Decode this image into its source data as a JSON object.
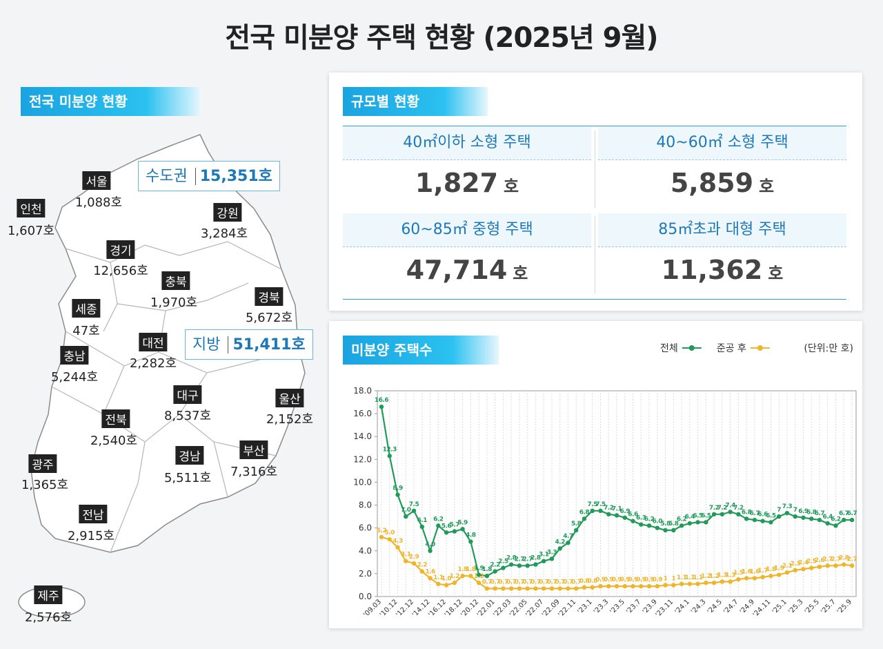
{
  "header": {
    "title": "전국 미분양 주택 현황  (2025년 9월)"
  },
  "map": {
    "section": "전국 미분양 현황",
    "callouts": [
      {
        "label": "수도권",
        "value": "15,351호"
      },
      {
        "label": "지방",
        "value": "51,411호"
      }
    ],
    "regions": [
      {
        "name": "서울",
        "count": "1,088호"
      },
      {
        "name": "인천",
        "count": "1,607호"
      },
      {
        "name": "강원",
        "count": "3,284호"
      },
      {
        "name": "경기",
        "count": "12,656호"
      },
      {
        "name": "충북",
        "count": "1,970호"
      },
      {
        "name": "경북",
        "count": "5,672호"
      },
      {
        "name": "세종",
        "count": "47호"
      },
      {
        "name": "충남",
        "count": "5,244호"
      },
      {
        "name": "대전",
        "count": "2,282호"
      },
      {
        "name": "대구",
        "count": "8,537호"
      },
      {
        "name": "울산",
        "count": "2,152호"
      },
      {
        "name": "전북",
        "count": "2,540호"
      },
      {
        "name": "경남",
        "count": "5,511호"
      },
      {
        "name": "부산",
        "count": "7,316호"
      },
      {
        "name": "광주",
        "count": "1,365호"
      },
      {
        "name": "전남",
        "count": "2,915호"
      },
      {
        "name": "제주",
        "count": "2,576호"
      }
    ]
  },
  "table": {
    "section": "규모별 현황",
    "cells": [
      {
        "label": "40㎡이하 소형 주택",
        "value": "1,827",
        "unit": "호"
      },
      {
        "label": "40~60㎡ 소형 주택",
        "value": "5,859",
        "unit": "호"
      },
      {
        "label": "60~85㎡ 중형 주택",
        "value": "47,714",
        "unit": "호"
      },
      {
        "label": "85㎡초과 대형 주택",
        "value": "11,362",
        "unit": "호"
      }
    ]
  },
  "chart_data": {
    "type": "line",
    "title": "미분양 주택수",
    "unit_note": "(단위:만 호)",
    "categories": [
      "'09.03",
      null,
      "'10.12",
      null,
      "'12.12",
      null,
      "'14.12",
      null,
      "'16.12",
      null,
      "'18.12",
      null,
      "'20.12",
      null,
      "'22.01",
      null,
      "'22.03",
      null,
      "'22.05",
      null,
      "'22.07",
      null,
      "'22.09",
      null,
      "'22.11",
      null,
      "'23.1",
      null,
      "'23.3",
      null,
      "'23.5",
      null,
      "'23.7",
      null,
      "'23.9",
      null,
      "'23.11",
      null,
      "'24.1",
      null,
      "'24.3",
      null,
      "'24.5",
      null,
      "'24.7",
      null,
      "'24.9",
      null,
      "'24.11",
      null,
      "'25.1",
      null,
      "'25.3",
      null,
      "'25.5",
      null,
      "'25.7",
      null,
      "'25.9"
    ],
    "series": [
      {
        "name": "전체",
        "color": "#1f9a58",
        "values": [
          16.6,
          12.3,
          8.9,
          7.0,
          7.5,
          6.1,
          4.0,
          6.2,
          5.6,
          5.7,
          5.9,
          4.8,
          1.9,
          1.8,
          2.2,
          2.5,
          2.8,
          2.7,
          2.7,
          2.8,
          3.1,
          3.3,
          4.2,
          4.7,
          5.8,
          6.8,
          7.5,
          7.5,
          7.2,
          7.1,
          6.9,
          6.6,
          6.3,
          6.2,
          6.0,
          5.8,
          5.8,
          6.2,
          6.4,
          6.5,
          6.5,
          7.2,
          7.2,
          7.4,
          7.2,
          6.8,
          6.7,
          6.6,
          6.5,
          7,
          7.3,
          7,
          6.9,
          6.8,
          6.7,
          6.4,
          6.2,
          6.7,
          6.7
        ],
        "value_labels": [
          "16.6",
          "12.3",
          "8.9",
          "7.0",
          "7.5",
          "6.1",
          "4.0",
          "6.2",
          "5.6",
          "5.7",
          "5.9",
          "4.8",
          "1.9",
          "1.8",
          "2.2",
          "2.5",
          "2.8",
          "2.7",
          "2.7",
          "2.8",
          "3.1",
          "3.3",
          "4.2",
          "4.7",
          "5.8",
          "6.8",
          "7.5",
          "7.5",
          "7.2",
          "7.1",
          "6.9",
          "6.6",
          "6.3",
          "6.2",
          "6.0",
          "5.8",
          "5.8",
          "6.2",
          "6.4",
          "6.5",
          "6.5",
          "7.2",
          "7.2",
          "7.4",
          "7.2",
          "6.8",
          "6.7",
          "6.6",
          "6.5",
          "7",
          "7.3",
          "7",
          "6.9",
          "6.8",
          "6.7",
          "6.4",
          "6.2",
          "6.7",
          "6.7"
        ]
      },
      {
        "name": "준공 후",
        "color": "#f0b429",
        "values": [
          5.2,
          5.0,
          4.3,
          3.1,
          2.9,
          2.2,
          1.6,
          1.1,
          1.0,
          1.2,
          1.8,
          1.8,
          1.2,
          0.7,
          0.7,
          0.7,
          0.7,
          0.7,
          0.7,
          0.7,
          0.7,
          0.7,
          0.7,
          0.7,
          0.7,
          0.8,
          0.8,
          0.9,
          0.9,
          0.9,
          0.9,
          0.9,
          0.9,
          0.9,
          0.9,
          1,
          1,
          1.1,
          1.1,
          1.1,
          1.2,
          1.2,
          1.3,
          1.3,
          1.5,
          1.6,
          1.6,
          1.7,
          1.8,
          1.9,
          2.1,
          2.3,
          2.4,
          2.5,
          2.6,
          2.7,
          2.7,
          2.8,
          2.7
        ],
        "value_labels": [
          "5.2",
          "5.0",
          "4.3",
          "3.1",
          "2.9",
          "2.2",
          "1.6",
          "1.1",
          "1.0",
          "1.2",
          "1.8",
          "1.8",
          "1.2",
          "0.7",
          "0.7",
          "0.7",
          "0.7",
          "0.7",
          "0.7",
          "0.7",
          "0.7",
          "0.7",
          "0.7",
          "0.7",
          "0.7",
          "0.8",
          "0.8",
          "0.9",
          "0.9",
          "0.9",
          "0.9",
          "0.9",
          "0.9",
          "0.9",
          "0.9",
          "1",
          "1",
          "1.1",
          "1.1",
          "1.1",
          "1.2",
          "1.2",
          "1.3",
          "1.3",
          "1.5",
          "1.6",
          "1.6",
          "1.7",
          "1.8",
          "1.9",
          "2.1",
          "2.3",
          "2.4",
          "2.5",
          "2.6",
          "2.7",
          "2.7",
          "2.8",
          "2.7"
        ]
      }
    ],
    "ylim": [
      0,
      18
    ],
    "yticks": [
      {
        "value": 0,
        "label": "0.0"
      },
      {
        "value": 2,
        "label": "2.0"
      },
      {
        "value": 4,
        "label": "4.0"
      },
      {
        "value": 6,
        "label": "6.0"
      },
      {
        "value": 8,
        "label": "8.0"
      },
      {
        "value": 10,
        "label": "10.0"
      },
      {
        "value": 12,
        "label": "12.0"
      },
      {
        "value": 14,
        "label": "14.0"
      },
      {
        "value": 16,
        "label": "16.0"
      },
      {
        "value": 18,
        "label": "18.0"
      }
    ],
    "grid": true,
    "legend": "top-right"
  }
}
